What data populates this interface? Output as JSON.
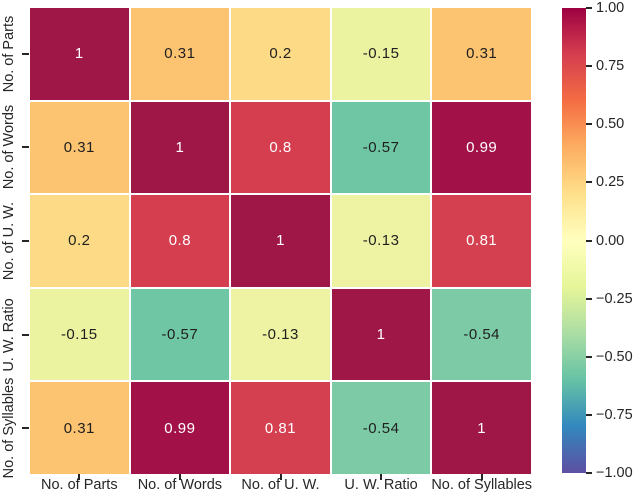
{
  "chart_data": {
    "type": "heatmap",
    "title": "",
    "description": "Correlation matrix heatmap with Spectral (reversed) colormap",
    "categories": [
      "No. of Parts",
      "No. of Words",
      "No. of U. W.",
      "U. W. Ratio",
      "No. of Syllables"
    ],
    "x_axis_labels": [
      "No. of Parts",
      "No. of Words",
      "No. of U. W.",
      "U. W. Ratio",
      "No. of Syllables"
    ],
    "y_axis_labels": [
      "No. of Parts",
      "No. of Words",
      "No. of U. W.",
      "U. W. Ratio",
      "No. of Syllables"
    ],
    "matrix": [
      [
        1,
        0.31,
        0.2,
        -0.15,
        0.31
      ],
      [
        0.31,
        1,
        0.8,
        -0.57,
        0.99
      ],
      [
        0.2,
        0.8,
        1,
        -0.13,
        0.81
      ],
      [
        -0.15,
        -0.57,
        -0.13,
        1,
        -0.54
      ],
      [
        0.31,
        0.99,
        0.81,
        -0.54,
        1
      ]
    ],
    "cells": [
      [
        {
          "v": "1",
          "bg": "#9e1746",
          "fg": "#ffffff"
        },
        {
          "v": "0.31",
          "bg": "#fcc371",
          "fg": "#1f1f1f"
        },
        {
          "v": "0.2",
          "bg": "#fdda85",
          "fg": "#1f1f1f"
        },
        {
          "v": "-0.15",
          "bg": "#ebf2a0",
          "fg": "#1f1f1f"
        },
        {
          "v": "0.31",
          "bg": "#fcc371",
          "fg": "#1f1f1f"
        }
      ],
      [
        {
          "v": "0.31",
          "bg": "#fcc371",
          "fg": "#1f1f1f"
        },
        {
          "v": "1",
          "bg": "#9e1746",
          "fg": "#ffffff"
        },
        {
          "v": "0.8",
          "bg": "#d53e4f",
          "fg": "#ffffff"
        },
        {
          "v": "-0.57",
          "bg": "#6fc6a5",
          "fg": "#1f1f1f"
        },
        {
          "v": "0.99",
          "bg": "#a21147",
          "fg": "#ffffff"
        }
      ],
      [
        {
          "v": "0.2",
          "bg": "#fdda85",
          "fg": "#1f1f1f"
        },
        {
          "v": "0.8",
          "bg": "#d53e4f",
          "fg": "#ffffff"
        },
        {
          "v": "1",
          "bg": "#9e1746",
          "fg": "#ffffff"
        },
        {
          "v": "-0.13",
          "bg": "#eef3a4",
          "fg": "#1f1f1f"
        },
        {
          "v": "0.81",
          "bg": "#d4404f",
          "fg": "#ffffff"
        }
      ],
      [
        {
          "v": "-0.15",
          "bg": "#ebf2a0",
          "fg": "#1f1f1f"
        },
        {
          "v": "-0.57",
          "bg": "#6fc6a5",
          "fg": "#1f1f1f"
        },
        {
          "v": "-0.13",
          "bg": "#eef3a4",
          "fg": "#1f1f1f"
        },
        {
          "v": "1",
          "bg": "#9e1746",
          "fg": "#ffffff"
        },
        {
          "v": "-0.54",
          "bg": "#7dcba6",
          "fg": "#1f1f1f"
        }
      ],
      [
        {
          "v": "0.31",
          "bg": "#fcc371",
          "fg": "#1f1f1f"
        },
        {
          "v": "0.99",
          "bg": "#a21147",
          "fg": "#ffffff"
        },
        {
          "v": "0.81",
          "bg": "#d4404f",
          "fg": "#ffffff"
        },
        {
          "v": "-0.54",
          "bg": "#7dcba6",
          "fg": "#1f1f1f"
        },
        {
          "v": "1",
          "bg": "#9e1746",
          "fg": "#ffffff"
        }
      ]
    ],
    "vmin": -1,
    "vmax": 1,
    "colormap": "Spectral_r",
    "grid": false,
    "legend_position": "right-colorbar",
    "colorbar": {
      "tick_labels": [
        "1.00",
        "0.75",
        "0.50",
        "0.25",
        "0.00",
        "−0.25",
        "−0.50",
        "−0.75",
        "−1.00"
      ],
      "gradient_stops": [
        "#9e0142",
        "#d53e4f",
        "#f46d43",
        "#fdae61",
        "#fee08b",
        "#ffffbf",
        "#e6f598",
        "#abdda4",
        "#66c2a5",
        "#3288bd",
        "#5e4fa2"
      ]
    },
    "colors": {
      "background": "#ffffff",
      "tick_color": "#262626",
      "label_color": "#262626",
      "cell_gap_color": "#ffffff"
    }
  }
}
